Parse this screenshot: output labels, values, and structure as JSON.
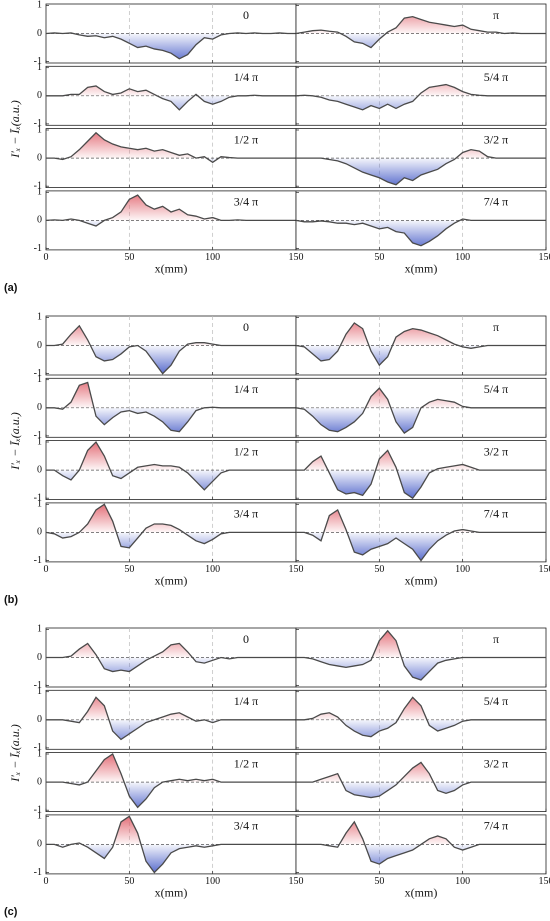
{
  "chart_data": [
    {
      "type": "area",
      "panel_label": "(a)",
      "y_label": "I′ₓ − Īₓ(a.u.)",
      "x_label": "x(mm)",
      "x": [
        0,
        5,
        10,
        15,
        20,
        25,
        30,
        35,
        40,
        45,
        50,
        55,
        60,
        65,
        70,
        75,
        80,
        85,
        90,
        95,
        100,
        105,
        110,
        115,
        120,
        125,
        130,
        135,
        140,
        145,
        150
      ],
      "xlim": [
        0,
        150
      ],
      "xticks": [
        0,
        50,
        100,
        150
      ],
      "ylim": [
        -1.05,
        1.05
      ],
      "yticks": [
        -1,
        0,
        1
      ],
      "line_color": "#4a4a4a",
      "pos_color": "#e0606a",
      "neg_color": "#4a5fc8",
      "series": [
        {
          "name": "0",
          "values": [
            0,
            0.02,
            0,
            0.02,
            -0.05,
            -0.1,
            -0.08,
            -0.15,
            -0.1,
            -0.2,
            -0.35,
            -0.5,
            -0.45,
            -0.55,
            -0.6,
            -0.7,
            -0.9,
            -0.75,
            -0.4,
            -0.15,
            -0.2,
            -0.05,
            0,
            0.02,
            0,
            0.02,
            0,
            0,
            0.02,
            0,
            0
          ]
        },
        {
          "name": "π",
          "values": [
            0,
            0.05,
            0.1,
            0.12,
            0.08,
            0.05,
            -0.1,
            -0.3,
            -0.35,
            -0.5,
            -0.2,
            0.05,
            0.2,
            0.55,
            0.6,
            0.5,
            0.4,
            0.35,
            0.3,
            0.25,
            0.3,
            0.15,
            0.1,
            0.05,
            0.05,
            0,
            0.02,
            0,
            0,
            0,
            0
          ]
        },
        {
          "name": "1/4 π",
          "values": [
            0,
            0,
            0,
            0.05,
            0.05,
            0.3,
            0.35,
            0.15,
            0.05,
            0.1,
            0.25,
            0.15,
            0.2,
            0.05,
            -0.1,
            -0.2,
            -0.5,
            -0.2,
            0.05,
            -0.2,
            -0.3,
            -0.2,
            -0.05,
            0,
            0,
            0.02,
            0,
            0,
            0,
            0,
            0
          ]
        },
        {
          "name": "5/4 π",
          "values": [
            0,
            0.02,
            0,
            -0.05,
            -0.15,
            -0.2,
            -0.3,
            -0.4,
            -0.5,
            -0.35,
            -0.45,
            -0.3,
            -0.45,
            -0.3,
            -0.2,
            0.1,
            0.3,
            0.35,
            0.4,
            0.3,
            0.15,
            0.05,
            0.02,
            0,
            0,
            0,
            0,
            0,
            0,
            0,
            0
          ]
        },
        {
          "name": "1/2 π",
          "values": [
            0,
            0,
            -0.05,
            0.05,
            0.3,
            0.6,
            0.9,
            0.65,
            0.5,
            0.4,
            0.35,
            0.3,
            0.35,
            0.25,
            0.3,
            0.2,
            0.1,
            0.15,
            0,
            0.05,
            -0.15,
            0.05,
            0.02,
            0,
            0,
            0,
            0,
            0,
            0,
            0,
            0
          ]
        },
        {
          "name": "3/2 π",
          "values": [
            0,
            0,
            0,
            0,
            -0.05,
            -0.1,
            -0.2,
            -0.35,
            -0.5,
            -0.6,
            -0.7,
            -0.85,
            -0.95,
            -0.7,
            -0.8,
            -0.6,
            -0.5,
            -0.4,
            -0.2,
            -0.05,
            0.2,
            0.3,
            0.25,
            0.05,
            0,
            0,
            0,
            0,
            0,
            0,
            0
          ]
        },
        {
          "name": "3/4 π",
          "values": [
            0,
            0.02,
            0,
            0.05,
            0,
            -0.1,
            -0.2,
            0,
            0.1,
            0.3,
            0.75,
            0.9,
            0.55,
            0.4,
            0.5,
            0.3,
            0.4,
            0.2,
            0.15,
            0.05,
            0.1,
            0,
            0,
            0.02,
            0,
            0,
            0,
            0,
            0,
            0,
            0
          ]
        },
        {
          "name": "7/4 π",
          "values": [
            0,
            -0.05,
            -0.05,
            -0.02,
            -0.05,
            -0.1,
            -0.1,
            -0.15,
            -0.1,
            -0.2,
            -0.3,
            -0.25,
            -0.4,
            -0.45,
            -0.8,
            -0.9,
            -0.75,
            -0.55,
            -0.3,
            -0.1,
            0.05,
            0,
            0,
            0,
            0,
            0,
            0,
            0,
            0,
            0,
            0
          ]
        }
      ]
    },
    {
      "type": "area",
      "panel_label": "(b)",
      "y_label": "I′ₓ − Īₓ(a.u.)",
      "x_label": "x(mm)",
      "x": [
        0,
        5,
        10,
        15,
        20,
        25,
        30,
        35,
        40,
        45,
        50,
        55,
        60,
        65,
        70,
        75,
        80,
        85,
        90,
        95,
        100,
        105,
        110,
        115,
        120,
        125,
        130,
        135,
        140,
        145,
        150
      ],
      "xlim": [
        0,
        150
      ],
      "xticks": [
        0,
        50,
        100,
        150
      ],
      "ylim": [
        -1.05,
        1.05
      ],
      "yticks": [
        -1,
        0,
        1
      ],
      "line_color": "#4a4a4a",
      "pos_color": "#e0606a",
      "neg_color": "#4a5fc8",
      "series": [
        {
          "name": "0",
          "values": [
            0,
            0,
            0.05,
            0.4,
            0.7,
            0.2,
            -0.4,
            -0.55,
            -0.5,
            -0.3,
            -0.05,
            0,
            -0.2,
            -0.6,
            -1,
            -0.7,
            -0.2,
            0.05,
            0.1,
            0.1,
            0.05,
            0,
            0,
            0,
            0,
            0,
            0,
            0,
            0,
            0,
            0
          ]
        },
        {
          "name": "π",
          "values": [
            0,
            -0.05,
            -0.3,
            -0.55,
            -0.5,
            -0.2,
            0.4,
            0.8,
            0.6,
            -0.2,
            -0.7,
            -0.4,
            0.3,
            0.5,
            0.6,
            0.55,
            0.45,
            0.35,
            0.2,
            0.05,
            -0.05,
            -0.1,
            -0.05,
            0,
            0,
            0,
            0,
            0,
            0,
            0,
            0
          ]
        },
        {
          "name": "1/4 π",
          "values": [
            0,
            0,
            -0.05,
            0.2,
            0.8,
            0.9,
            -0.3,
            -0.6,
            -0.35,
            -0.15,
            -0.1,
            -0.2,
            -0.15,
            -0.3,
            -0.5,
            -0.8,
            -0.85,
            -0.5,
            -0.1,
            0,
            0.02,
            0,
            0,
            0,
            0,
            0,
            0,
            0,
            0,
            0,
            0
          ]
        },
        {
          "name": "5/4 π",
          "values": [
            0,
            -0.05,
            -0.3,
            -0.6,
            -0.8,
            -0.85,
            -0.7,
            -0.5,
            -0.2,
            0.4,
            0.7,
            0.3,
            -0.5,
            -0.9,
            -0.7,
            0,
            0.2,
            0.3,
            0.25,
            0.2,
            0.05,
            0,
            0,
            0,
            0,
            0,
            0,
            0,
            0,
            0,
            0
          ]
        },
        {
          "name": "1/2 π",
          "values": [
            0,
            0,
            -0.2,
            -0.35,
            0,
            0.7,
            1,
            0.5,
            -0.2,
            -0.3,
            -0.1,
            0.1,
            0.15,
            0.2,
            0.15,
            0.15,
            0.1,
            -0.1,
            -0.4,
            -0.7,
            -0.4,
            -0.1,
            0,
            0,
            0,
            0,
            0,
            0,
            0,
            0,
            0
          ]
        },
        {
          "name": "3/2 π",
          "values": [
            0,
            0,
            0.3,
            0.5,
            -0.1,
            -0.7,
            -0.85,
            -0.8,
            -0.9,
            -0.5,
            0.4,
            0.7,
            0.1,
            -0.8,
            -1,
            -0.6,
            -0.1,
            0.05,
            0.1,
            0.15,
            0.2,
            0.1,
            0,
            0,
            0,
            0,
            0,
            0,
            0,
            0,
            0
          ]
        },
        {
          "name": "3/4 π",
          "values": [
            0,
            -0.05,
            -0.2,
            -0.15,
            0,
            0.3,
            0.8,
            1,
            0.4,
            -0.5,
            -0.55,
            -0.2,
            0.15,
            0.3,
            0.3,
            0.25,
            0.1,
            -0.1,
            -0.3,
            -0.4,
            -0.25,
            -0.05,
            0,
            0,
            0,
            0,
            0,
            0,
            0,
            0,
            0
          ]
        },
        {
          "name": "7/4 π",
          "values": [
            0,
            0,
            -0.1,
            -0.3,
            0.6,
            0.8,
            0.1,
            -0.7,
            -0.8,
            -0.6,
            -0.5,
            -0.4,
            -0.2,
            -0.4,
            -0.6,
            -1,
            -0.6,
            -0.3,
            -0.1,
            0.05,
            0.1,
            0.05,
            0,
            0,
            0,
            0,
            0,
            0,
            0,
            0,
            0
          ]
        }
      ]
    },
    {
      "type": "area",
      "panel_label": "(c)",
      "y_label": "I′ₓ − Īₓ(a.u.)",
      "x_label": "x(mm)",
      "x": [
        0,
        5,
        10,
        15,
        20,
        25,
        30,
        35,
        40,
        45,
        50,
        55,
        60,
        65,
        70,
        75,
        80,
        85,
        90,
        95,
        100,
        105,
        110,
        115,
        120,
        125,
        130,
        135,
        140,
        145,
        150
      ],
      "xlim": [
        0,
        150
      ],
      "xticks": [
        0,
        50,
        100,
        150
      ],
      "ylim": [
        -1.05,
        1.05
      ],
      "yticks": [
        -1,
        0,
        1
      ],
      "line_color": "#4a4a4a",
      "pos_color": "#e0606a",
      "neg_color": "#4a5fc8",
      "series": [
        {
          "name": "0",
          "values": [
            0,
            0,
            0,
            0.05,
            0.3,
            0.5,
            0.1,
            -0.4,
            -0.5,
            -0.45,
            -0.5,
            -0.3,
            -0.1,
            0.05,
            0.2,
            0.45,
            0.5,
            0.2,
            -0.15,
            -0.2,
            -0.1,
            0,
            -0.05,
            0,
            0,
            0,
            0,
            0,
            0,
            0,
            0
          ]
        },
        {
          "name": "π",
          "values": [
            0,
            0,
            -0.05,
            -0.15,
            -0.25,
            -0.3,
            -0.35,
            -0.3,
            -0.25,
            -0.1,
            0.6,
            0.95,
            0.6,
            -0.3,
            -0.7,
            -0.8,
            -0.5,
            -0.2,
            -0.1,
            -0.05,
            0,
            0,
            0,
            0,
            0,
            0,
            0,
            0,
            0,
            0,
            0
          ]
        },
        {
          "name": "1/4 π",
          "values": [
            0,
            0,
            0,
            -0.05,
            -0.1,
            0.3,
            0.8,
            0.5,
            -0.4,
            -0.7,
            -0.5,
            -0.3,
            -0.1,
            0,
            0.1,
            0.2,
            0.25,
            0.1,
            -0.05,
            0,
            -0.1,
            0,
            0,
            0,
            0,
            0,
            0,
            0,
            0,
            0,
            0
          ]
        },
        {
          "name": "5/4 π",
          "values": [
            0,
            0,
            0.05,
            0.2,
            0.25,
            0.1,
            -0.2,
            -0.4,
            -0.55,
            -0.6,
            -0.4,
            -0.3,
            -0.1,
            0.4,
            0.8,
            0.5,
            -0.2,
            -0.4,
            -0.3,
            -0.2,
            -0.05,
            0,
            0,
            0,
            0,
            0,
            0,
            0,
            0,
            0,
            0
          ]
        },
        {
          "name": "1/2 π",
          "values": [
            0,
            0,
            0,
            -0.05,
            -0.1,
            0,
            0.4,
            0.8,
            1,
            0.3,
            -0.5,
            -0.9,
            -0.6,
            -0.2,
            0,
            0.05,
            0.1,
            0.05,
            0.1,
            0.05,
            0.1,
            0,
            0,
            0,
            0,
            0,
            0,
            0,
            0,
            0,
            0
          ]
        },
        {
          "name": "3/2 π",
          "values": [
            0,
            0,
            0,
            0.1,
            0.2,
            0.3,
            -0.3,
            -0.45,
            -0.5,
            -0.55,
            -0.5,
            -0.3,
            -0.1,
            0.2,
            0.5,
            0.7,
            0.3,
            -0.3,
            -0.4,
            -0.3,
            -0.1,
            0,
            0,
            0,
            0,
            0,
            0,
            0,
            0,
            0,
            0
          ]
        },
        {
          "name": "3/4 π",
          "values": [
            0,
            0,
            -0.1,
            0,
            0.05,
            -0.1,
            -0.3,
            -0.5,
            -0.1,
            0.8,
            1,
            0.4,
            -0.6,
            -1,
            -0.7,
            -0.3,
            -0.15,
            -0.1,
            -0.05,
            -0.1,
            -0.05,
            0,
            0,
            0,
            0,
            0,
            0,
            0,
            0,
            0,
            0
          ]
        },
        {
          "name": "7/4 π",
          "values": [
            0,
            0,
            0,
            0,
            -0.05,
            -0.1,
            0.4,
            0.8,
            0.2,
            -0.6,
            -0.7,
            -0.5,
            -0.4,
            -0.3,
            -0.2,
            0,
            0.2,
            0.3,
            0.2,
            -0.1,
            -0.2,
            -0.1,
            0,
            0,
            0,
            0,
            0,
            0,
            0,
            0,
            0
          ]
        }
      ]
    }
  ]
}
